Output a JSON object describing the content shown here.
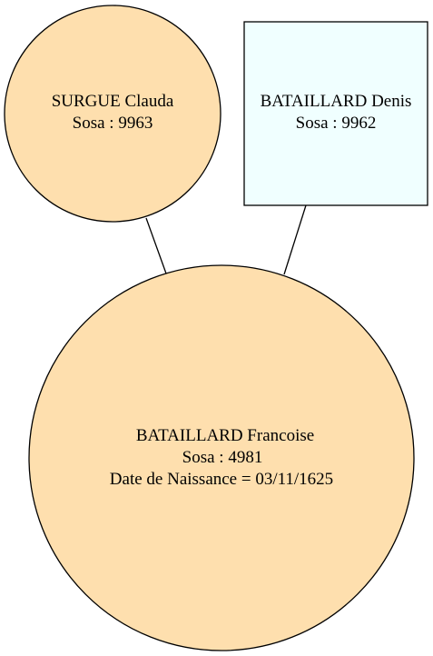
{
  "colors": {
    "female_fill": "#FEDFAE",
    "male_fill": "#F0FFFF",
    "stroke": "#000000"
  },
  "nodes": {
    "mother": {
      "name": "SURGUE Clauda",
      "sosa": "Sosa : 9963",
      "shape": "ellipse"
    },
    "father": {
      "name": "BATAILLARD Denis",
      "sosa": "Sosa : 9962",
      "shape": "box"
    },
    "child": {
      "name": "BATAILLARD Francoise",
      "sosa": "Sosa : 4981",
      "birth": "Date de Naissance = 03/11/1625",
      "shape": "ellipse"
    }
  },
  "edges": [
    {
      "from": "mother",
      "to": "child"
    },
    {
      "from": "father",
      "to": "child"
    }
  ]
}
